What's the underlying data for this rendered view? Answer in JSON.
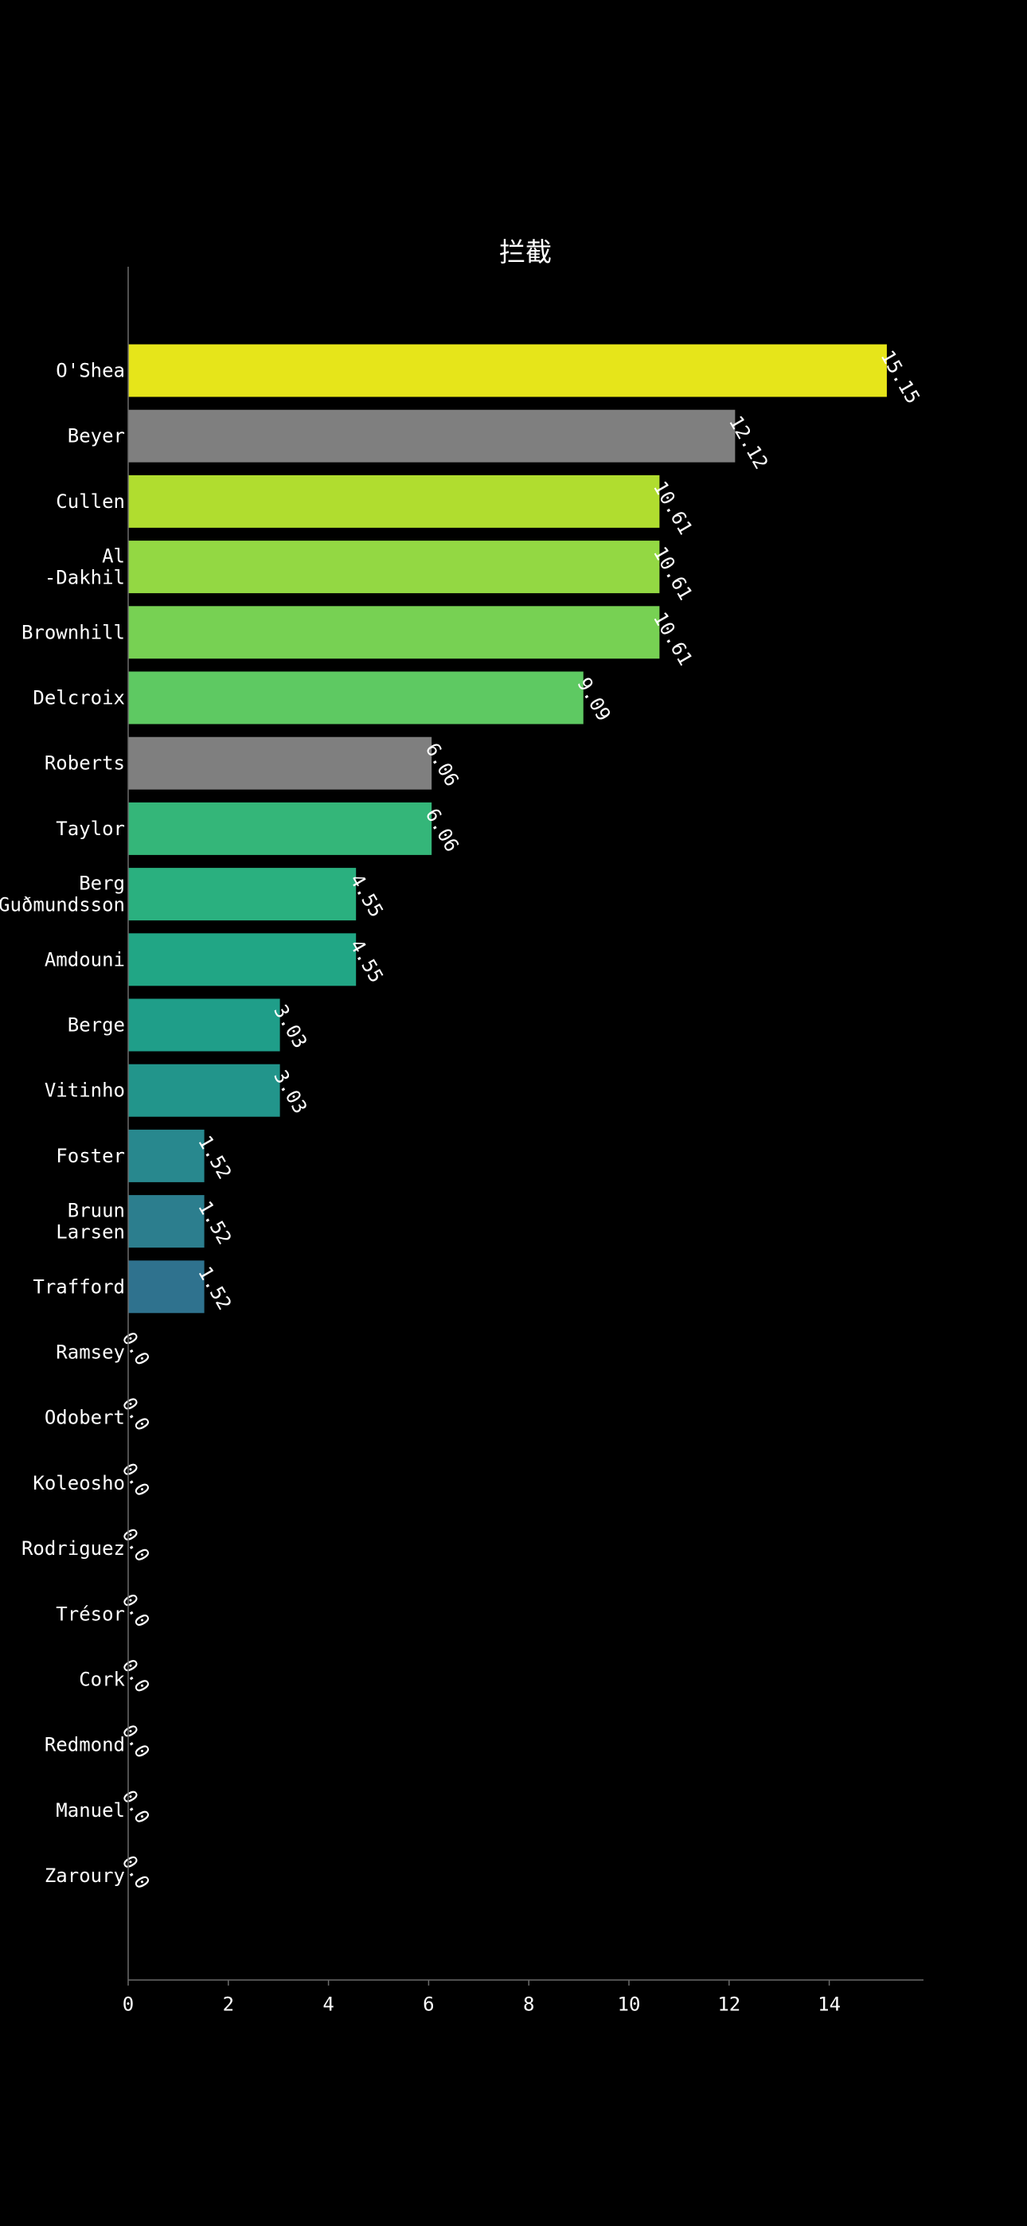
{
  "chart_data": {
    "type": "bar",
    "orientation": "horizontal",
    "title": "拦截",
    "xlabel": "",
    "ylabel": "",
    "xlim": [
      0,
      15.9
    ],
    "xticks": [
      0,
      2,
      4,
      6,
      8,
      10,
      12,
      14
    ],
    "xtick_labels": [
      "0",
      "2",
      "4",
      "6",
      "8",
      "10",
      "12",
      "14"
    ],
    "grid": false,
    "legend": "none",
    "categories": [
      "O'Shea",
      "Beyer",
      "Cullen",
      "Al\n-Dakhil",
      "Brownhill",
      "Delcroix",
      "Roberts",
      "Taylor",
      "Berg\nGuðmundsson",
      "Amdouni",
      "Berge",
      "Vitinho",
      "Foster",
      "Bruun\nLarsen",
      "Trafford",
      "Ramsey",
      "Odobert",
      "Koleosho",
      "Rodriguez",
      "Trésor",
      "Cork",
      "Redmond",
      "Manuel",
      "Zaroury"
    ],
    "values": [
      15.15,
      12.12,
      10.61,
      10.61,
      10.61,
      9.09,
      6.06,
      6.06,
      4.55,
      4.55,
      3.03,
      3.03,
      1.52,
      1.52,
      1.52,
      0.0,
      0.0,
      0.0,
      0.0,
      0.0,
      0.0,
      0.0,
      0.0,
      0.0
    ],
    "value_labels": [
      "15.15",
      "12.12",
      "10.61",
      "10.61",
      "10.61",
      "9.09",
      "6.06",
      "6.06",
      "4.55",
      "4.55",
      "3.03",
      "3.03",
      "1.52",
      "1.52",
      "1.52",
      "0.0",
      "0.0",
      "0.0",
      "0.0",
      "0.0",
      "0.0",
      "0.0",
      "0.0",
      "0.0"
    ],
    "colors": [
      "#e6e51a",
      "#7f7f7f",
      "#b0dd2f",
      "#93d843",
      "#77d153",
      "#5ec962",
      "#7f7f7f",
      "#34b679",
      "#2ab07f",
      "#21a685",
      "#1f9e89",
      "#22958b",
      "#28888e",
      "#2c7e8e",
      "#2f728e",
      "#33638d",
      "#3a548c",
      "#3f4889",
      "#443a83",
      "#472a7a",
      "#481c6e",
      "#481467",
      "#46075a",
      "#440154"
    ]
  }
}
